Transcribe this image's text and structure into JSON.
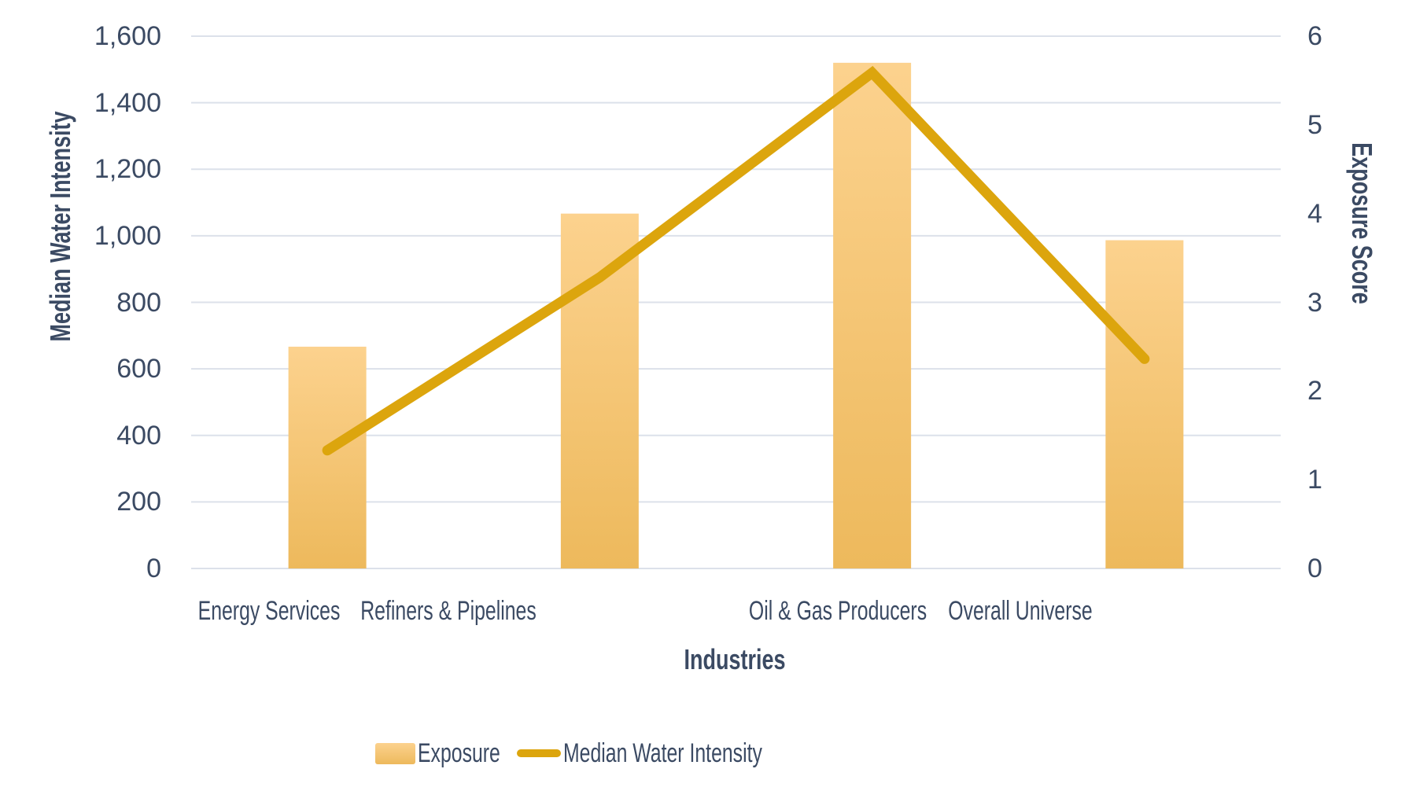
{
  "chart_data": {
    "type": "combo-bar-line",
    "categories": [
      "Energy Services",
      "Refiners & Pipelines",
      "Oil & Gas Producers",
      "Overall Universe"
    ],
    "series": [
      {
        "name": "Exposure",
        "type": "bar",
        "axis": "right",
        "values": [
          2.5,
          4.0,
          5.7,
          3.7
        ]
      },
      {
        "name": "Median Water Intensity",
        "type": "line",
        "axis": "left",
        "values": [
          355,
          875,
          1490,
          630
        ]
      }
    ],
    "left_axis": {
      "title": "Median Water Intensity",
      "min": 0,
      "max": 1600,
      "step": 200,
      "tick_labels": [
        "0",
        "200",
        "400",
        "600",
        "800",
        "1,000",
        "1,200",
        "1,400",
        "1,600"
      ]
    },
    "right_axis": {
      "title": "Exposure Score",
      "min": 0,
      "max": 6,
      "step": 1,
      "tick_labels": [
        "0",
        "1",
        "2",
        "3",
        "4",
        "5",
        "6"
      ]
    },
    "x_axis": {
      "title": "Industries"
    },
    "legend": {
      "position": "bottom",
      "items": [
        {
          "label": "Exposure",
          "swatch": "bar"
        },
        {
          "label": "Median Water Intensity",
          "swatch": "line"
        }
      ]
    },
    "grid": true,
    "colors": {
      "bar_top": "#FCD28E",
      "bar_bottom": "#EDB95C",
      "line": "#DCA50D",
      "text": "#3B4A63",
      "gridline": "#DCE1EA",
      "background": "#FFFFFF"
    }
  }
}
